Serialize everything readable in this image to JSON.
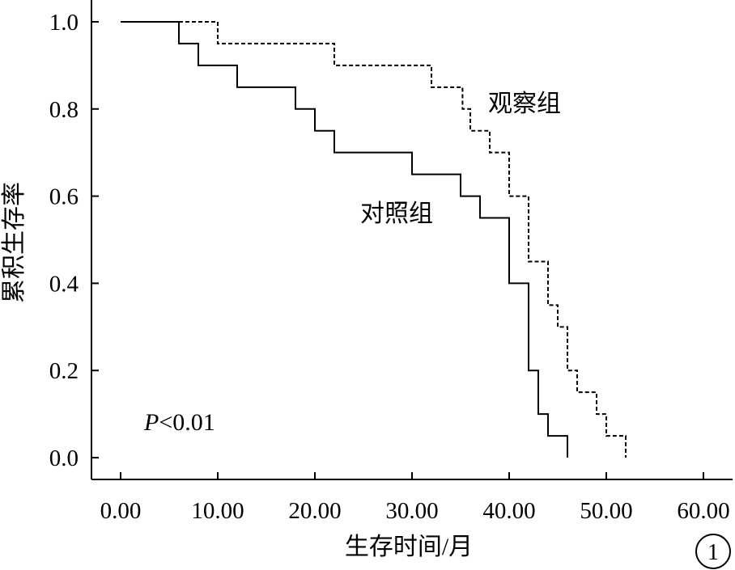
{
  "chart_data": {
    "type": "line",
    "step": true,
    "title": "",
    "xlabel": "生存时间/月",
    "ylabel": "累积生存率",
    "xlim": [
      -3,
      63
    ],
    "ylim": [
      -0.05,
      1.05
    ],
    "x_ticks": [
      0,
      10,
      20,
      30,
      40,
      50,
      60
    ],
    "x_tick_labels": [
      "0.00",
      "10.00",
      "20.00",
      "30.00",
      "40.00",
      "50.00",
      "60.00"
    ],
    "y_ticks": [
      0,
      0.2,
      0.4,
      0.6,
      0.8,
      1.0
    ],
    "y_tick_labels": [
      "0.0",
      "0.2",
      "0.4",
      "0.6",
      "0.8",
      "1.0"
    ],
    "grid": false,
    "series": [
      {
        "name": "观察组",
        "style": "dashed",
        "color": "#000000",
        "x": [
          0,
          10,
          22,
          32,
          35.2,
          36,
          38,
          40,
          42,
          44,
          45,
          46,
          47,
          49,
          50,
          52
        ],
        "y": [
          1.0,
          0.95,
          0.9,
          0.85,
          0.8,
          0.75,
          0.7,
          0.6,
          0.45,
          0.35,
          0.3,
          0.2,
          0.15,
          0.1,
          0.05,
          0.0
        ]
      },
      {
        "name": "对照组",
        "style": "solid",
        "color": "#000000",
        "x": [
          0,
          6,
          8,
          12,
          18,
          20,
          22,
          30,
          35,
          37,
          40,
          42,
          43,
          44,
          46
        ],
        "y": [
          1.0,
          0.95,
          0.9,
          0.85,
          0.8,
          0.75,
          0.7,
          0.65,
          0.6,
          0.55,
          0.4,
          0.2,
          0.1,
          0.05,
          0.0
        ]
      }
    ],
    "annotations": {
      "p_symbol": "P",
      "p_rest": "<0.01",
      "panel_number": "1"
    }
  }
}
